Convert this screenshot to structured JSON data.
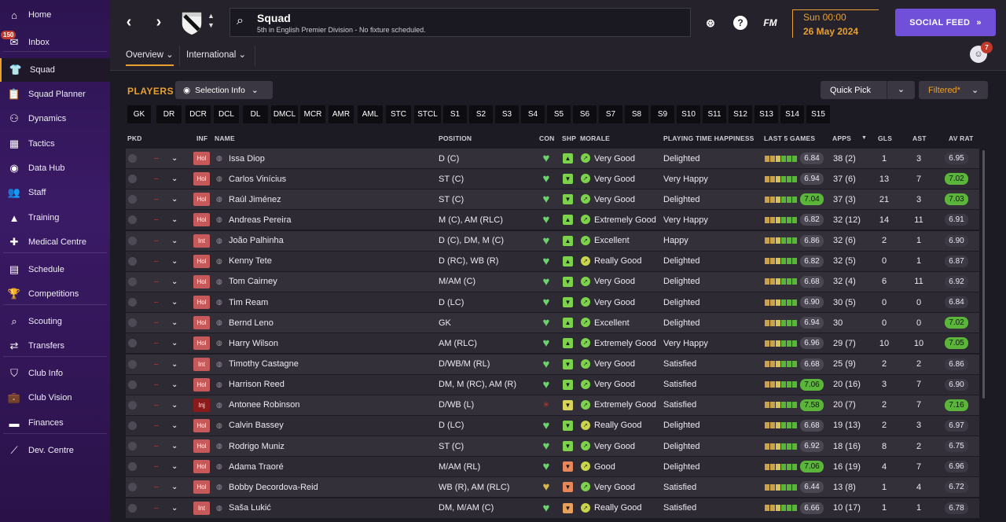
{
  "sidebar": {
    "items": [
      {
        "label": "Home",
        "icon": "home-icon",
        "glyph": "⌂"
      },
      {
        "label": "Inbox",
        "icon": "inbox-icon",
        "glyph": "✉",
        "badge": "150"
      },
      {
        "label": "Squad",
        "icon": "squad-icon",
        "glyph": "👕",
        "active": true
      },
      {
        "label": "Squad Planner",
        "icon": "clipboard-icon",
        "glyph": "📋"
      },
      {
        "label": "Dynamics",
        "icon": "dynamics-icon",
        "glyph": "⚇"
      },
      {
        "label": "Tactics",
        "icon": "tactics-icon",
        "glyph": "▦"
      },
      {
        "label": "Data Hub",
        "icon": "data-hub-icon",
        "glyph": "◉"
      },
      {
        "label": "Staff",
        "icon": "staff-icon",
        "glyph": "👥"
      },
      {
        "label": "Training",
        "icon": "training-icon",
        "glyph": "▲"
      },
      {
        "label": "Medical Centre",
        "icon": "medical-icon",
        "glyph": "✚"
      },
      {
        "label": "Schedule",
        "icon": "calendar-icon",
        "glyph": "▤"
      },
      {
        "label": "Competitions",
        "icon": "trophy-icon",
        "glyph": "🏆"
      },
      {
        "label": "Scouting",
        "icon": "search-icon",
        "glyph": "⌕"
      },
      {
        "label": "Transfers",
        "icon": "transfer-icon",
        "glyph": "⇄"
      },
      {
        "label": "Club Info",
        "icon": "shield-icon",
        "glyph": "⛉"
      },
      {
        "label": "Club Vision",
        "icon": "briefcase-icon",
        "glyph": "💼"
      },
      {
        "label": "Finances",
        "icon": "money-icon",
        "glyph": "▬"
      },
      {
        "label": "Dev. Centre",
        "icon": "dev-centre-icon",
        "glyph": "⟋"
      }
    ]
  },
  "header": {
    "title": "Squad",
    "subtitle": "5th in English Premier Division - No fixture scheduled.",
    "time": "Sun 00:00",
    "date": "26 May 2024",
    "social_label": "SOCIAL FEED",
    "fm_label": "FM",
    "help_label": "?",
    "tabs": [
      "Overview",
      "International"
    ],
    "notif_count": "7",
    "accent": "#e8a030",
    "social_color": "#7050d8"
  },
  "toolbar": {
    "players_label": "PLAYERS",
    "selection_info": "Selection Info",
    "quick_pick": "Quick Pick",
    "filtered": "Filtered*"
  },
  "positions": [
    "GK",
    "DR",
    "DCR",
    "DCL",
    "DL",
    "DMCL",
    "MCR",
    "AMR",
    "AML",
    "STC",
    "STCL",
    "S1",
    "S2",
    "S3",
    "S4",
    "S5",
    "S6",
    "S7",
    "S8",
    "S9",
    "S10",
    "S11",
    "S12",
    "S13",
    "S14",
    "S15"
  ],
  "columns": [
    "PKD",
    "INF",
    "NAME",
    "POSITION",
    "CON",
    "SHP",
    "MORALE",
    "PLAYING TIME HAPPINESS",
    "LAST 5 GAMES",
    "APPS",
    "GLS",
    "AST",
    "AV RAT"
  ],
  "players": [
    {
      "inf": "Hol",
      "name": "Issa Diop",
      "pos": "D (C)",
      "con": "heart",
      "shp": "up",
      "morale": "Very Good",
      "pth": "Delighted",
      "last": "6.84",
      "lg": false,
      "apps": "38 (2)",
      "gls": "1",
      "ast": "3",
      "av": "6.95",
      "ag": false
    },
    {
      "inf": "Hol",
      "name": "Carlos Vinícius",
      "pos": "ST (C)",
      "con": "heart",
      "shp": "down",
      "morale": "Very Good",
      "pth": "Very Happy",
      "last": "6.94",
      "lg": false,
      "apps": "37 (6)",
      "gls": "13",
      "ast": "7",
      "av": "7.02",
      "ag": true
    },
    {
      "inf": "Hol",
      "name": "Raúl Jiménez",
      "pos": "ST (C)",
      "con": "heart",
      "shp": "down",
      "morale": "Very Good",
      "pth": "Delighted",
      "last": "7.04",
      "lg": true,
      "apps": "37 (3)",
      "gls": "21",
      "ast": "3",
      "av": "7.03",
      "ag": true
    },
    {
      "inf": "Hol",
      "name": "Andreas Pereira",
      "pos": "M (C), AM (RLC)",
      "con": "heart",
      "shp": "up",
      "morale": "Extremely Good",
      "pth": "Very Happy",
      "last": "6.82",
      "lg": false,
      "apps": "32 (12)",
      "gls": "14",
      "ast": "11",
      "av": "6.91",
      "ag": false
    },
    {
      "inf": "Int",
      "name": "João Palhinha",
      "pos": "D (C), DM, M (C)",
      "con": "heart",
      "shp": "up",
      "morale": "Excellent",
      "pth": "Happy",
      "last": "6.86",
      "lg": false,
      "apps": "32 (6)",
      "gls": "2",
      "ast": "1",
      "av": "6.90",
      "ag": false
    },
    {
      "inf": "Hol",
      "name": "Kenny Tete",
      "pos": "D (RC), WB (R)",
      "con": "heart",
      "shp": "up",
      "morale": "Really Good",
      "pth": "Delighted",
      "last": "6.82",
      "lg": false,
      "apps": "32 (5)",
      "gls": "0",
      "ast": "1",
      "av": "6.87",
      "ag": false
    },
    {
      "inf": "Hol",
      "name": "Tom Cairney",
      "pos": "M/AM (C)",
      "con": "heart",
      "shp": "down",
      "morale": "Very Good",
      "pth": "Delighted",
      "last": "6.68",
      "lg": false,
      "apps": "32 (4)",
      "gls": "6",
      "ast": "11",
      "av": "6.92",
      "ag": false
    },
    {
      "inf": "Hol",
      "name": "Tim Ream",
      "pos": "D (LC)",
      "con": "heart",
      "shp": "down",
      "morale": "Very Good",
      "pth": "Delighted",
      "last": "6.90",
      "lg": false,
      "apps": "30 (5)",
      "gls": "0",
      "ast": "0",
      "av": "6.84",
      "ag": false
    },
    {
      "inf": "Hol",
      "name": "Bernd Leno",
      "pos": "GK",
      "con": "heart",
      "shp": "up",
      "morale": "Excellent",
      "pth": "Delighted",
      "last": "6.94",
      "lg": false,
      "apps": "30",
      "gls": "0",
      "ast": "0",
      "av": "7.02",
      "ag": true
    },
    {
      "inf": "Hol",
      "name": "Harry Wilson",
      "pos": "AM (RLC)",
      "con": "heart",
      "shp": "up",
      "morale": "Extremely Good",
      "pth": "Very Happy",
      "last": "6.96",
      "lg": false,
      "apps": "29 (7)",
      "gls": "10",
      "ast": "10",
      "av": "7.05",
      "ag": true
    },
    {
      "inf": "Int",
      "name": "Timothy Castagne",
      "pos": "D/WB/M (RL)",
      "con": "heart",
      "shp": "down",
      "morale": "Very Good",
      "pth": "Satisfied",
      "last": "6.68",
      "lg": false,
      "apps": "25 (9)",
      "gls": "2",
      "ast": "2",
      "av": "6.86",
      "ag": false
    },
    {
      "inf": "Hol",
      "name": "Harrison Reed",
      "pos": "DM, M (RC), AM (R)",
      "con": "heart",
      "shp": "down",
      "morale": "Very Good",
      "pth": "Satisfied",
      "last": "7.06",
      "lg": true,
      "apps": "20 (16)",
      "gls": "3",
      "ast": "7",
      "av": "6.90",
      "ag": false
    },
    {
      "inf": "Inj",
      "name": "Antonee Robinson",
      "pos": "D/WB (L)",
      "con": "injury",
      "shp": "yellow",
      "morale": "Extremely Good",
      "pth": "Satisfied",
      "last": "7.58",
      "lg": true,
      "apps": "20 (7)",
      "gls": "2",
      "ast": "7",
      "av": "7.16",
      "ag": true
    },
    {
      "inf": "Hol",
      "name": "Calvin Bassey",
      "pos": "D (LC)",
      "con": "heart",
      "shp": "down",
      "morale": "Really Good",
      "pth": "Delighted",
      "last": "6.68",
      "lg": false,
      "apps": "19 (13)",
      "gls": "2",
      "ast": "3",
      "av": "6.97",
      "ag": false
    },
    {
      "inf": "Hol",
      "name": "Rodrigo Muniz",
      "pos": "ST (C)",
      "con": "heart",
      "shp": "down",
      "morale": "Very Good",
      "pth": "Delighted",
      "last": "6.92",
      "lg": false,
      "apps": "18 (16)",
      "gls": "8",
      "ast": "2",
      "av": "6.75",
      "ag": false
    },
    {
      "inf": "Hol",
      "name": "Adama Traoré",
      "pos": "M/AM (RL)",
      "con": "heart",
      "shp": "orange",
      "morale": "Good",
      "pth": "Delighted",
      "last": "7.06",
      "lg": true,
      "apps": "16 (19)",
      "gls": "4",
      "ast": "7",
      "av": "6.96",
      "ag": false
    },
    {
      "inf": "Hol",
      "name": "Bobby Decordova-Reid",
      "pos": "WB (R), AM (RLC)",
      "con": "heart-yellow",
      "shp": "orange",
      "morale": "Very Good",
      "pth": "Satisfied",
      "last": "6.44",
      "lg": false,
      "apps": "13 (8)",
      "gls": "1",
      "ast": "4",
      "av": "6.72",
      "ag": false
    },
    {
      "inf": "Int",
      "name": "Saša Lukić",
      "pos": "DM, M/AM (C)",
      "con": "heart",
      "shp": "orangedown",
      "morale": "Really Good",
      "pth": "Satisfied",
      "last": "6.66",
      "lg": false,
      "apps": "10 (17)",
      "gls": "1",
      "ast": "1",
      "av": "6.78",
      "ag": false
    }
  ]
}
